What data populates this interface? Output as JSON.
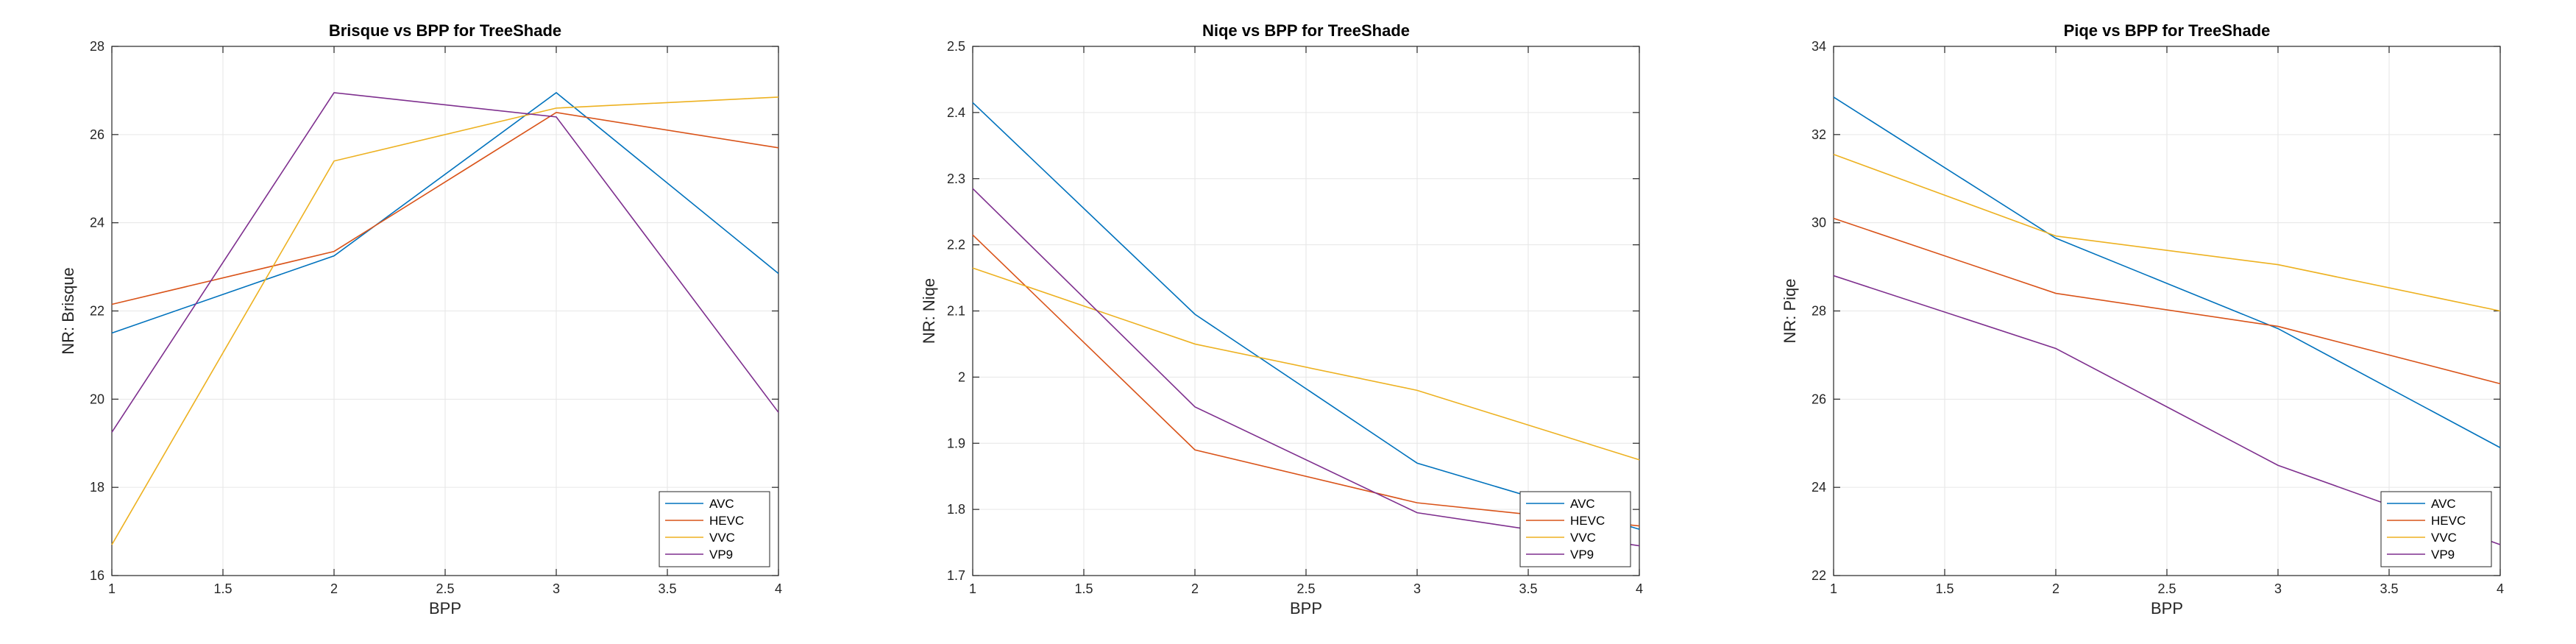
{
  "chart_data": [
    {
      "type": "line",
      "title": "Brisque vs BPP for TreeShade",
      "xlabel": "BPP",
      "ylabel": "NR: Brisque",
      "x": [
        1,
        2,
        3,
        4
      ],
      "xlim": [
        1,
        4
      ],
      "ylim": [
        16,
        28
      ],
      "xticks": [
        "1",
        "1.5",
        "2",
        "2.5",
        "3",
        "3.5",
        "4"
      ],
      "yticks": [
        "16",
        "18",
        "20",
        "22",
        "24",
        "26",
        "28"
      ],
      "grid": true,
      "legend_position": "bottom-right",
      "series": [
        {
          "name": "AVC",
          "values": [
            21.5,
            23.25,
            26.95,
            22.85
          ]
        },
        {
          "name": "HEVC",
          "values": [
            22.15,
            23.35,
            26.5,
            25.7
          ]
        },
        {
          "name": "VVC",
          "values": [
            16.7,
            25.4,
            26.6,
            26.85
          ]
        },
        {
          "name": "VP9",
          "values": [
            19.25,
            26.95,
            26.4,
            19.7
          ]
        }
      ]
    },
    {
      "type": "line",
      "title": "Niqe vs BPP for TreeShade",
      "xlabel": "BPP",
      "ylabel": "NR: Niqe",
      "x": [
        1,
        2,
        3,
        4
      ],
      "xlim": [
        1,
        4
      ],
      "ylim": [
        1.7,
        2.5
      ],
      "xticks": [
        "1",
        "1.5",
        "2",
        "2.5",
        "3",
        "3.5",
        "4"
      ],
      "yticks": [
        "1.7",
        "1.8",
        "1.9",
        "2",
        "2.1",
        "2.2",
        "2.3",
        "2.4",
        "2.5"
      ],
      "grid": true,
      "legend_position": "bottom-right",
      "series": [
        {
          "name": "AVC",
          "values": [
            2.415,
            2.095,
            1.87,
            1.77
          ]
        },
        {
          "name": "HEVC",
          "values": [
            2.215,
            1.89,
            1.81,
            1.775
          ]
        },
        {
          "name": "VVC",
          "values": [
            2.165,
            2.05,
            1.98,
            1.875
          ]
        },
        {
          "name": "VP9",
          "values": [
            2.285,
            1.955,
            1.795,
            1.745
          ]
        }
      ]
    },
    {
      "type": "line",
      "title": "Piqe vs BPP for TreeShade",
      "xlabel": "BPP",
      "ylabel": "NR: Piqe",
      "x": [
        1,
        2,
        3,
        4
      ],
      "xlim": [
        1,
        4
      ],
      "ylim": [
        22,
        34
      ],
      "xticks": [
        "1",
        "1.5",
        "2",
        "2.5",
        "3",
        "3.5",
        "4"
      ],
      "yticks": [
        "22",
        "24",
        "26",
        "28",
        "30",
        "32",
        "34"
      ],
      "grid": true,
      "legend_position": "bottom-right",
      "series": [
        {
          "name": "AVC",
          "values": [
            32.85,
            29.65,
            27.6,
            24.9
          ]
        },
        {
          "name": "HEVC",
          "values": [
            30.1,
            28.4,
            27.65,
            26.35
          ]
        },
        {
          "name": "VVC",
          "values": [
            31.55,
            29.7,
            29.05,
            28.0
          ]
        },
        {
          "name": "VP9",
          "values": [
            28.8,
            27.15,
            24.5,
            22.7
          ]
        }
      ]
    }
  ],
  "series_colors": {
    "AVC": "#0072BD",
    "HEVC": "#D95319",
    "VVC": "#EDB120",
    "VP9": "#7E2F8E"
  }
}
